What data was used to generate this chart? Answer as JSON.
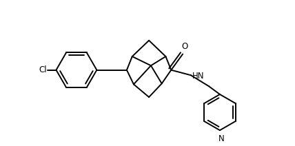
{
  "background_color": "#ffffff",
  "line_color": "#000000",
  "line_width": 1.4,
  "figsize": [
    4.28,
    2.12
  ],
  "dpi": 100,
  "xlim": [
    0,
    10
  ],
  "ylim": [
    0,
    5
  ]
}
